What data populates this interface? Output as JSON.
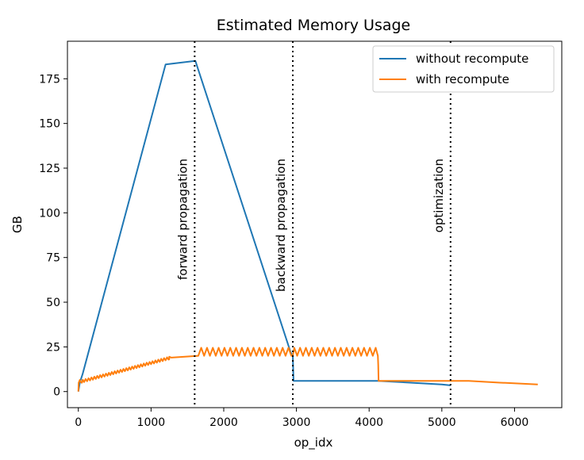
{
  "chart_data": {
    "type": "line",
    "title": "Estimated Memory Usage",
    "xlabel": "op_idx",
    "ylabel": "GB",
    "xlim": [
      -150,
      6650
    ],
    "ylim": [
      -9,
      196
    ],
    "xticks": [
      0,
      1000,
      2000,
      3000,
      4000,
      5000,
      6000
    ],
    "yticks": [
      0,
      25,
      50,
      75,
      100,
      125,
      150,
      175
    ],
    "grid": false,
    "legend_position": "top-right",
    "series": [
      {
        "name": "without recompute",
        "color": "#1f77b4",
        "x": [
          0,
          20,
          60,
          1200,
          1610,
          2920,
          2950,
          2960,
          4120,
          5000,
          5120
        ],
        "y": [
          0,
          5,
          10,
          183,
          185,
          22,
          20,
          6,
          6,
          4,
          3.5
        ]
      },
      {
        "name": "with recompute",
        "color": "#ff7f0e",
        "x": [
          0,
          5,
          50,
          1250,
          1280,
          1650,
          2950,
          4120,
          4125,
          4130,
          5370,
          5800,
          6320
        ],
        "y": [
          0,
          5,
          5,
          18,
          19,
          20,
          20,
          20,
          15,
          6,
          6,
          5,
          4
        ],
        "spike_bands": [
          {
            "x0": 0,
            "x1": 1250,
            "period": 40,
            "amplitude": 1.5
          },
          {
            "x0": 1650,
            "x1": 4110,
            "period": 80,
            "amplitude": 4.5
          }
        ]
      }
    ],
    "vlines": [
      {
        "x": 1600,
        "label": "forward propagation"
      },
      {
        "x": 2950,
        "label": "backward propagation"
      },
      {
        "x": 5120,
        "label": "optimization"
      }
    ]
  }
}
